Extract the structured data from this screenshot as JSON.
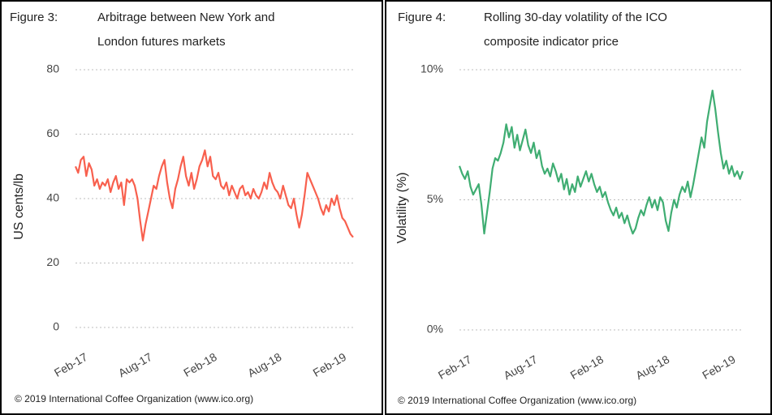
{
  "chart_data": [
    {
      "type": "line",
      "figure_label": "Figure 3:",
      "title": [
        "Arbitrage between New York and",
        "London futures markets"
      ],
      "ylabel": "US cents/lb",
      "source": "© 2019 International Coffee Organization (www.ico.org)",
      "categories": [
        "Feb-17",
        null,
        null,
        null,
        null,
        null,
        null,
        null,
        null,
        null,
        null,
        null,
        null,
        null,
        null,
        null,
        null,
        null,
        null,
        null,
        null,
        null,
        null,
        null,
        "Aug-17",
        null,
        null,
        null,
        null,
        null,
        null,
        null,
        null,
        null,
        null,
        null,
        null,
        null,
        null,
        null,
        null,
        null,
        null,
        null,
        null,
        null,
        null,
        null,
        "Feb-18",
        null,
        null,
        null,
        null,
        null,
        null,
        null,
        null,
        null,
        null,
        null,
        null,
        null,
        null,
        null,
        null,
        null,
        null,
        null,
        null,
        null,
        null,
        null,
        "Aug-18",
        null,
        null,
        null,
        null,
        null,
        null,
        null,
        null,
        null,
        null,
        null,
        null,
        null,
        null,
        null,
        null,
        null,
        null,
        null,
        null,
        null,
        null,
        null,
        "Feb-19",
        null,
        null,
        null,
        null,
        null,
        null,
        null
      ],
      "series": [
        {
          "name": "Arbitrage",
          "color": "#f8604e",
          "values": [
            50,
            48,
            52,
            53,
            47,
            51,
            49,
            44,
            46,
            43,
            45,
            44,
            46,
            42,
            45,
            47,
            43,
            45,
            38,
            46,
            45,
            46,
            44,
            40,
            33,
            27,
            32,
            36,
            40,
            44,
            43,
            47,
            50,
            52,
            45,
            40,
            37,
            43,
            46,
            50,
            53,
            47,
            44,
            48,
            43,
            46,
            50,
            52,
            55,
            50,
            53,
            47,
            46,
            48,
            44,
            43,
            45,
            41,
            44,
            42,
            40,
            43,
            44,
            41,
            42,
            40,
            43,
            41,
            40,
            42,
            45,
            43,
            48,
            45,
            43,
            42,
            40,
            44,
            41,
            38,
            37,
            40,
            35,
            31,
            35,
            41,
            48,
            46,
            44,
            42,
            40,
            37,
            35,
            38,
            36,
            40,
            38,
            41,
            37,
            34,
            33,
            31,
            29,
            28
          ]
        }
      ],
      "ylim": [
        0,
        80
      ],
      "yticks": [
        0,
        20,
        40,
        60,
        80
      ],
      "grid": true
    },
    {
      "type": "line",
      "figure_label": "Figure 4:",
      "title": [
        "Rolling 30-day volatility of the ICO",
        "composite indicator price"
      ],
      "ylabel": "Volatility (%)",
      "source": "© 2019 International Coffee Organization (www.ico.org)",
      "categories": [
        "Feb-17",
        null,
        null,
        null,
        null,
        null,
        null,
        null,
        null,
        null,
        null,
        null,
        null,
        null,
        null,
        null,
        null,
        null,
        null,
        null,
        null,
        null,
        null,
        null,
        "Aug-17",
        null,
        null,
        null,
        null,
        null,
        null,
        null,
        null,
        null,
        null,
        null,
        null,
        null,
        null,
        null,
        null,
        null,
        null,
        null,
        null,
        null,
        null,
        null,
        "Feb-18",
        null,
        null,
        null,
        null,
        null,
        null,
        null,
        null,
        null,
        null,
        null,
        null,
        null,
        null,
        null,
        null,
        null,
        null,
        null,
        null,
        null,
        null,
        null,
        "Aug-18",
        null,
        null,
        null,
        null,
        null,
        null,
        null,
        null,
        null,
        null,
        null,
        null,
        null,
        null,
        null,
        null,
        null,
        null,
        null,
        null,
        null,
        null,
        null,
        "Feb-19",
        null,
        null,
        null,
        null,
        null,
        null,
        null
      ],
      "series": [
        {
          "name": "Volatility",
          "color": "#3fad72",
          "values": [
            6.3,
            6.0,
            5.8,
            6.1,
            5.5,
            5.2,
            5.4,
            5.6,
            4.8,
            3.7,
            4.5,
            5.3,
            6.2,
            6.6,
            6.5,
            6.8,
            7.2,
            7.9,
            7.4,
            7.8,
            7.0,
            7.5,
            6.9,
            7.3,
            7.7,
            7.1,
            6.8,
            7.2,
            6.6,
            6.9,
            6.3,
            6.0,
            6.2,
            5.9,
            6.4,
            6.1,
            5.7,
            6.0,
            5.4,
            5.8,
            5.2,
            5.6,
            5.3,
            5.9,
            5.5,
            5.8,
            6.1,
            5.7,
            6.0,
            5.6,
            5.3,
            5.5,
            5.1,
            5.3,
            4.9,
            4.6,
            4.4,
            4.7,
            4.3,
            4.5,
            4.1,
            4.4,
            4.0,
            3.7,
            3.9,
            4.3,
            4.6,
            4.4,
            4.8,
            5.1,
            4.7,
            5.0,
            4.6,
            5.1,
            4.9,
            4.2,
            3.8,
            4.5,
            5.0,
            4.7,
            5.2,
            5.5,
            5.3,
            5.7,
            5.1,
            5.6,
            6.2,
            6.8,
            7.4,
            7.0,
            8.0,
            8.6,
            9.2,
            8.5,
            7.6,
            6.8,
            6.2,
            6.5,
            6.0,
            6.3,
            5.9,
            6.1,
            5.8,
            6.1
          ]
        }
      ],
      "ylim": [
        0,
        10
      ],
      "yticks": [
        {
          "value": 0,
          "label": "0%"
        },
        {
          "value": 5,
          "label": "5%"
        },
        {
          "value": 10,
          "label": "10%"
        }
      ],
      "grid": true
    }
  ]
}
